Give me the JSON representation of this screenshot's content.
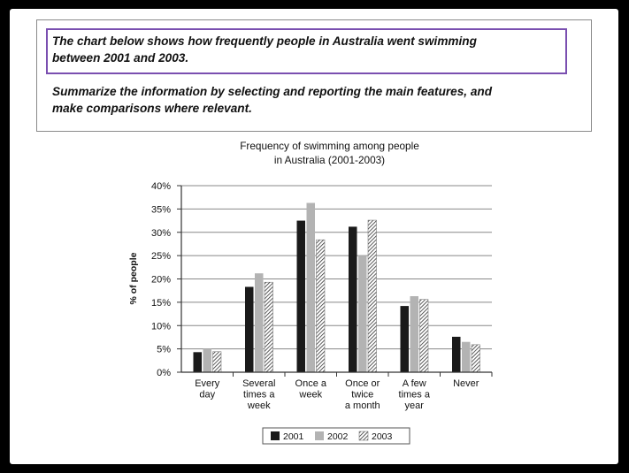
{
  "prompt": {
    "line1": "The chart below shows how frequently people in Australia went swimming",
    "line2": "between 2001 and 2003.",
    "line3": "Summarize the information by selecting and reporting the main features, and",
    "line4": "make comparisons where relevant."
  },
  "colors": {
    "2001": "#1a1a1a",
    "2002": "#b3b3b3",
    "2003": "hatched",
    "highlight": "#7a4fb0"
  },
  "chart_data": {
    "type": "bar",
    "title_lines": [
      "Frequency of swimming among people",
      "in Australia (2001-2003)"
    ],
    "ylabel": "% of people",
    "xlabel": "",
    "ylim": [
      0,
      40
    ],
    "yticks": [
      "0%",
      "5%",
      "10%",
      "15%",
      "20%",
      "25%",
      "30%",
      "35%",
      "40%"
    ],
    "grid": true,
    "legend_position": "bottom",
    "categories": [
      [
        "Every",
        "day"
      ],
      [
        "Several",
        "times a",
        "week"
      ],
      [
        "Once a",
        "week"
      ],
      [
        "Once or",
        "twice",
        "a month"
      ],
      [
        "A few",
        "times a",
        "year"
      ],
      [
        "Never"
      ]
    ],
    "series": [
      {
        "name": "2001",
        "values": [
          4.3,
          18.3,
          32.5,
          31.2,
          14.2,
          7.6
        ]
      },
      {
        "name": "2002",
        "values": [
          5.0,
          21.2,
          36.3,
          25.0,
          16.3,
          6.5
        ]
      },
      {
        "name": "2003",
        "values": [
          4.4,
          19.3,
          28.4,
          32.6,
          15.6,
          5.9
        ]
      }
    ]
  }
}
